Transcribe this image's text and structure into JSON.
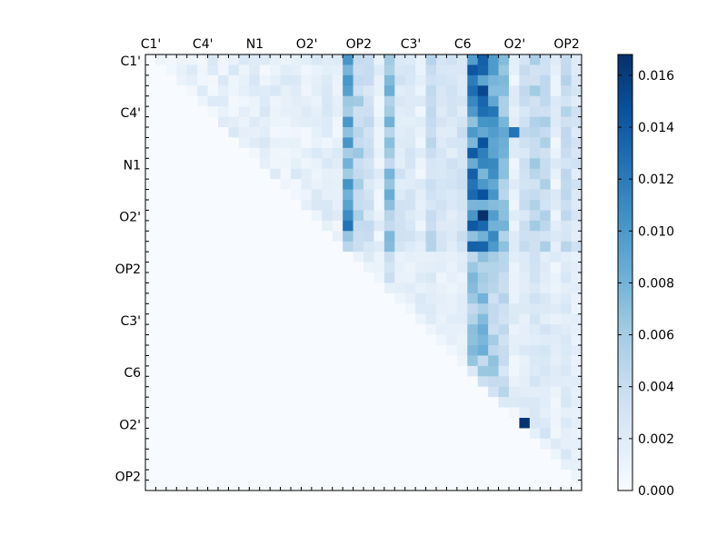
{
  "chart_data": {
    "type": "heatmap",
    "title": "",
    "xlabel": "",
    "ylabel": "",
    "x_tick_labels": [
      "C1'",
      "C4'",
      "N1",
      "O2'",
      "OP2",
      "C3'",
      "C6",
      "O2'",
      "OP2"
    ],
    "y_tick_labels": [
      "C1'",
      "C4'",
      "N1",
      "O2'",
      "OP2",
      "C3'",
      "C6",
      "O2'",
      "OP2"
    ],
    "n_rows": 42,
    "n_cols": 42,
    "upper_triangular": true,
    "colorbar": {
      "colormap": "Blues",
      "min": 0.0,
      "max": 0.0168,
      "tick_labels": [
        "0.000",
        "0.002",
        "0.004",
        "0.006",
        "0.008",
        "0.010",
        "0.012",
        "0.014",
        "0.016"
      ],
      "tick_values": [
        0.0,
        0.002,
        0.004,
        0.006,
        0.008,
        0.01,
        0.012,
        0.014,
        0.016
      ]
    },
    "notable_cells": [
      {
        "row": 15,
        "col": 32,
        "value": 0.0168
      },
      {
        "row": 35,
        "col": 36,
        "value": 0.0165
      },
      {
        "row": 16,
        "col": 19,
        "value": 0.0125
      },
      {
        "row": 7,
        "col": 35,
        "value": 0.0125
      }
    ]
  }
}
